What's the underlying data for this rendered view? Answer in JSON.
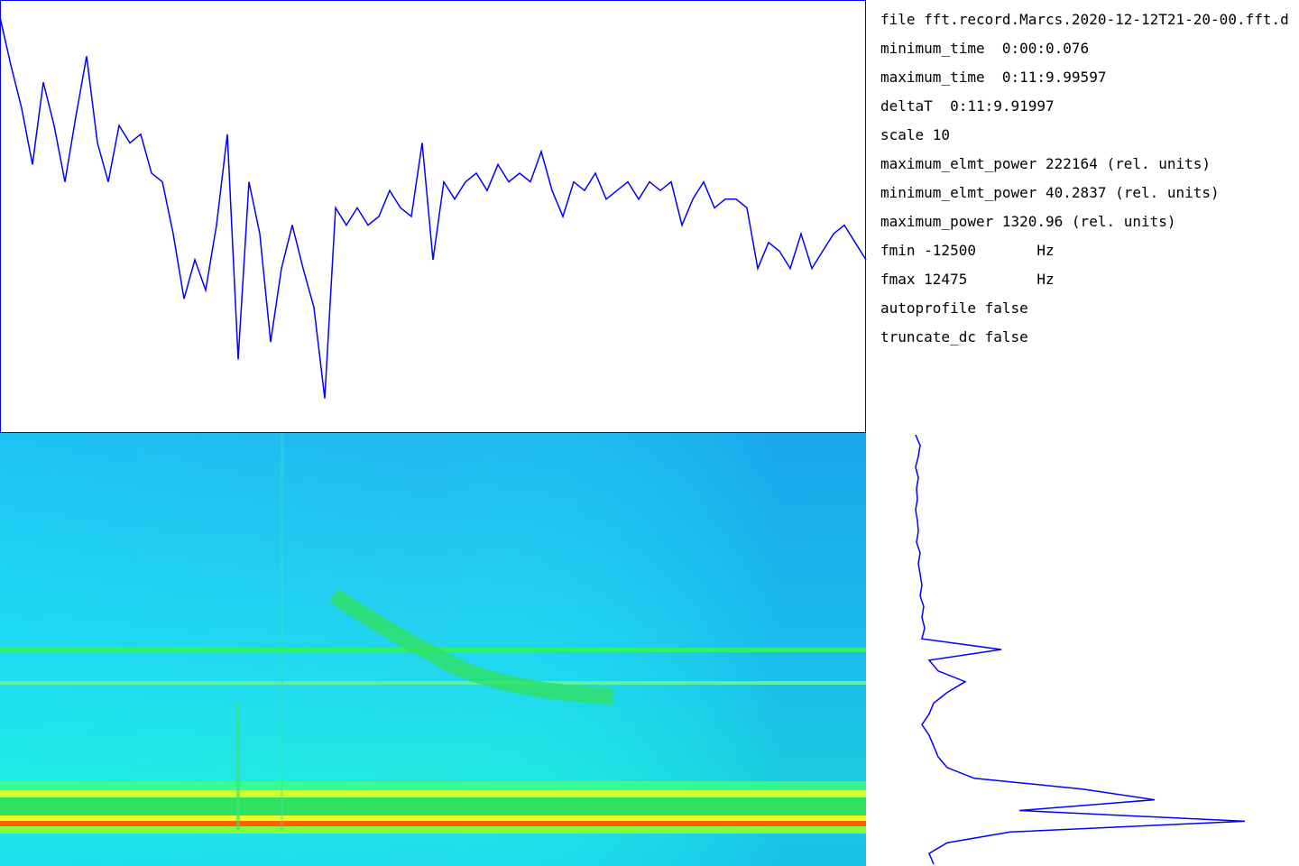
{
  "info": {
    "lines": [
      "file fft.record.Marcs.2020-12-12T21-20-00.fft.d",
      "minimum_time  0:00:0.076",
      "maximum_time  0:11:9.99597",
      "deltaT  0:11:9.91997",
      "scale 10",
      "maximum_elmt_power 222164 (rel. units)",
      "minimum_elmt_power 40.2837 (rel. units)",
      "maximum_power 1320.96 (rel. units)",
      "fmin -12500       Hz",
      "fmax 12475        Hz",
      "autoprofile false",
      "truncate_dc false"
    ]
  },
  "top_profile": {
    "color": "#0000ff",
    "values": [
      96,
      85,
      75,
      62,
      81,
      71,
      58,
      73,
      87,
      67,
      58,
      71,
      67,
      69,
      60,
      58,
      46,
      31,
      40,
      33,
      48,
      69,
      17,
      58,
      46,
      21,
      38,
      48,
      38,
      29,
      8,
      52,
      48,
      52,
      48,
      50,
      56,
      52,
      50,
      67,
      40,
      58,
      54,
      58,
      60,
      56,
      62,
      58,
      60,
      58,
      65,
      56,
      50,
      58,
      56,
      60,
      54,
      56,
      58,
      54,
      58,
      56,
      58,
      48,
      54,
      58,
      52,
      54,
      54,
      52,
      38,
      44,
      42,
      38,
      46,
      38,
      42,
      46,
      48,
      44,
      40
    ]
  },
  "side_profile": {
    "color": "#0000ff",
    "values": [
      15,
      20,
      18,
      15,
      18,
      16,
      17,
      15,
      17,
      18,
      16,
      20,
      18,
      20,
      22,
      20,
      24,
      22,
      25,
      22,
      110,
      30,
      40,
      70,
      50,
      35,
      30,
      22,
      30,
      35,
      40,
      50,
      80,
      200,
      280,
      130,
      380,
      120,
      50,
      30,
      35
    ]
  }
}
